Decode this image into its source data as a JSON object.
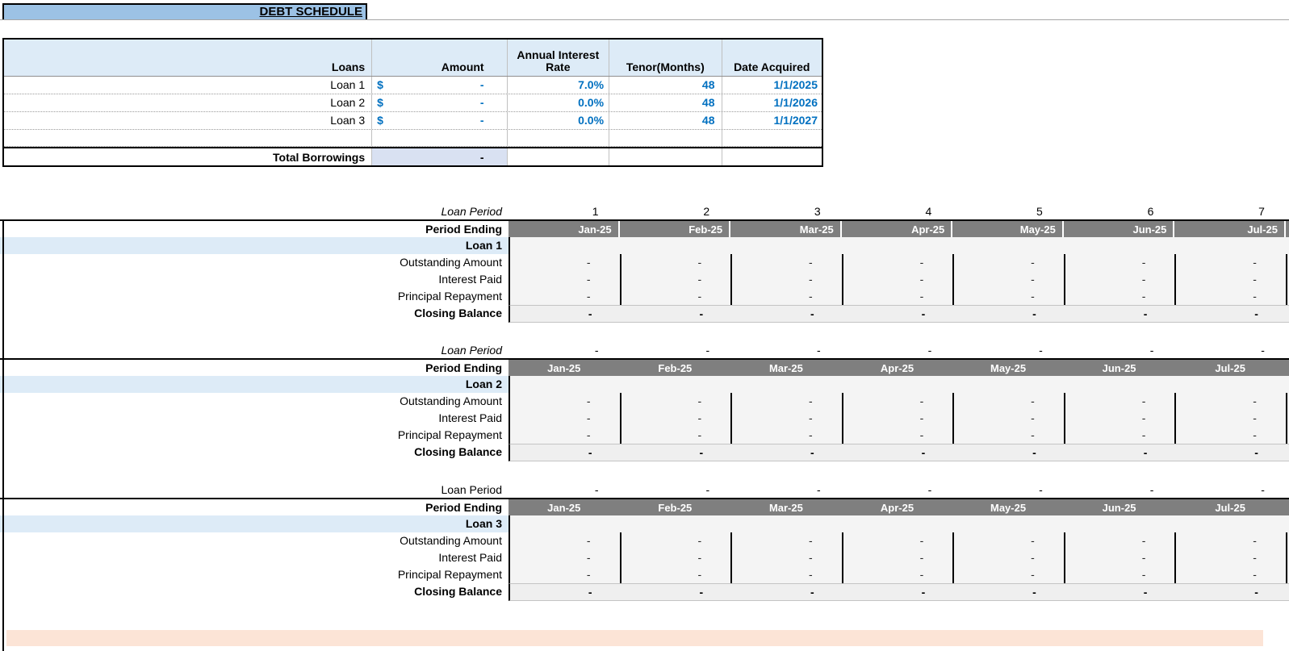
{
  "title": {
    "text": "DEBT SCHEDULE"
  },
  "colors": {
    "title_band": "#9CC2E5",
    "table_header_bg": "#DDEBF7",
    "loan_name_row_bg": "#DDEBF7",
    "total_cell_bg": "#D9E1F2",
    "period_header_bg": "#7F7F7F",
    "input_value_text": "#0070C0",
    "bottom_strip_bg": "#FCE4D6",
    "data_area_bg": "#F4F4F4"
  },
  "loans_table": {
    "col_headers": [
      "Loans",
      "Amount",
      "Annual Interest Rate",
      "Tenor(Months)",
      "Date Acquired"
    ],
    "rows": [
      {
        "name": "Loan 1",
        "currency": "$",
        "amount": "-",
        "rate": "7.0%",
        "tenor": "48",
        "date_acquired": "1/1/2025"
      },
      {
        "name": "Loan 2",
        "currency": "$",
        "amount": "-",
        "rate": "0.0%",
        "tenor": "48",
        "date_acquired": "1/1/2026"
      },
      {
        "name": "Loan 3",
        "currency": "$",
        "amount": "-",
        "rate": "0.0%",
        "tenor": "48",
        "date_acquired": "1/1/2027"
      }
    ],
    "total": {
      "label": "Total Borrowings",
      "value": "-"
    }
  },
  "schedule": {
    "sections": [
      {
        "loan_period_label": "Loan Period",
        "loan_period_italic": true,
        "periods": [
          "1",
          "2",
          "3",
          "4",
          "5",
          "6",
          "7"
        ],
        "period_ending_label": "Period Ending",
        "months": [
          "Jan-25",
          "Feb-25",
          "Mar-25",
          "Apr-25",
          "May-25",
          "Jun-25",
          "Jul-25"
        ],
        "month_align": "right",
        "header_gaps": true,
        "loan_name": "Loan 1",
        "rows": [
          {
            "label": "Outstanding Amount",
            "values": [
              "-",
              "-",
              "-",
              "-",
              "-",
              "-",
              "-"
            ]
          },
          {
            "label": "Interest Paid",
            "values": [
              "-",
              "-",
              "-",
              "-",
              "-",
              "-",
              "-"
            ]
          },
          {
            "label": "Principal Repayment",
            "values": [
              "-",
              "-",
              "-",
              "-",
              "-",
              "-",
              "-"
            ]
          }
        ],
        "closing": {
          "label": "Closing Balance",
          "values": [
            "-",
            "-",
            "-",
            "-",
            "-",
            "-",
            "-"
          ]
        }
      },
      {
        "loan_period_label": "Loan Period",
        "loan_period_italic": true,
        "periods": [
          "-",
          "-",
          "-",
          "-",
          "-",
          "-",
          "-"
        ],
        "period_ending_label": "Period Ending",
        "months": [
          "Jan-25",
          "Feb-25",
          "Mar-25",
          "Apr-25",
          "May-25",
          "Jun-25",
          "Jul-25"
        ],
        "month_align": "center",
        "header_gaps": false,
        "loan_name": "Loan 2",
        "rows": [
          {
            "label": "Outstanding Amount",
            "values": [
              "-",
              "-",
              "-",
              "-",
              "-",
              "-",
              "-"
            ]
          },
          {
            "label": "Interest Paid",
            "values": [
              "-",
              "-",
              "-",
              "-",
              "-",
              "-",
              "-"
            ]
          },
          {
            "label": "Principal Repayment",
            "values": [
              "-",
              "-",
              "-",
              "-",
              "-",
              "-",
              "-"
            ]
          }
        ],
        "closing": {
          "label": "Closing Balance",
          "values": [
            "-",
            "-",
            "-",
            "-",
            "-",
            "-",
            "-"
          ]
        }
      },
      {
        "loan_period_label": "Loan Period",
        "loan_period_italic": false,
        "periods": [
          "-",
          "-",
          "-",
          "-",
          "-",
          "-",
          "-"
        ],
        "period_ending_label": "Period Ending",
        "months": [
          "Jan-25",
          "Feb-25",
          "Mar-25",
          "Apr-25",
          "May-25",
          "Jun-25",
          "Jul-25"
        ],
        "month_align": "center",
        "header_gaps": false,
        "loan_name": "Loan 3",
        "rows": [
          {
            "label": "Outstanding Amount",
            "values": [
              "-",
              "-",
              "-",
              "-",
              "-",
              "-",
              "-"
            ]
          },
          {
            "label": "Interest Paid",
            "values": [
              "-",
              "-",
              "-",
              "-",
              "-",
              "-",
              "-"
            ]
          },
          {
            "label": "Principal Repayment",
            "values": [
              "-",
              "-",
              "-",
              "-",
              "-",
              "-",
              "-"
            ]
          }
        ],
        "closing": {
          "label": "Closing Balance",
          "values": [
            "-",
            "-",
            "-",
            "-",
            "-",
            "-",
            "-"
          ]
        }
      }
    ]
  }
}
